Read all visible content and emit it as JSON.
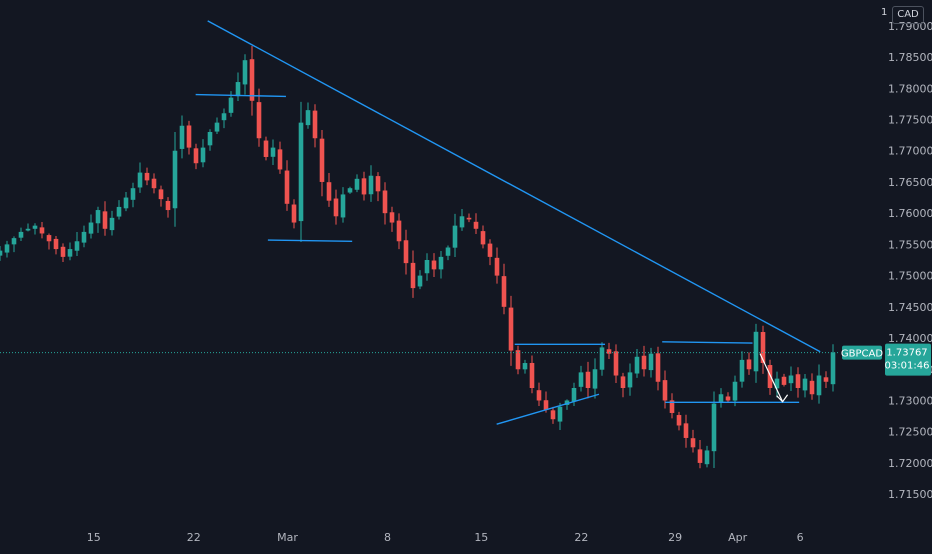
{
  "header": {
    "price_prefix": "1",
    "currency": "CAD"
  },
  "symbol": {
    "name": "GBPCAD",
    "last_price": "1.73767",
    "countdown": "03:01:46",
    "last_value": 1.73767
  },
  "colors": {
    "background": "#131722",
    "up": "#26a69a",
    "down": "#ef5350",
    "drawing": "#2196f3",
    "symbol_tag": "#26a69a",
    "arrow": "#ffffff"
  },
  "chart_data": {
    "type": "candlestick",
    "x_ticks": [
      "15",
      "22",
      "Mar",
      "8",
      "15",
      "22",
      "29",
      "Apr",
      "6"
    ],
    "y_ticks": [
      "1.79000",
      "1.78500",
      "1.78000",
      "1.77500",
      "1.77000",
      "1.76500",
      "1.76000",
      "1.75500",
      "1.75000",
      "1.74500",
      "1.74000",
      "1.73500",
      "1.73000",
      "1.72500",
      "1.72000",
      "1.71500"
    ],
    "ylim": [
      1.7115,
      1.7935
    ],
    "xlim": [
      0,
      128
    ],
    "tick_positions": [
      15,
      31,
      46,
      62,
      77,
      93,
      108,
      118,
      128
    ],
    "price_anchors": [
      [
        0,
        1.754
      ],
      [
        3,
        1.757
      ],
      [
        5,
        1.758
      ],
      [
        7,
        1.7555
      ],
      [
        9,
        1.753
      ],
      [
        11,
        1.7555
      ],
      [
        13,
        1.7585
      ],
      [
        14,
        1.7605
      ],
      [
        15,
        1.7575
      ],
      [
        17,
        1.761
      ],
      [
        19,
        1.764
      ],
      [
        20,
        1.7665
      ],
      [
        22,
        1.764
      ],
      [
        24,
        1.7605
      ],
      [
        25,
        1.77
      ],
      [
        26,
        1.774
      ],
      [
        27,
        1.7705
      ],
      [
        28,
        1.768
      ],
      [
        30,
        1.773
      ],
      [
        32,
        1.776
      ],
      [
        34,
        1.781
      ],
      [
        35,
        1.7845
      ],
      [
        36,
        1.778
      ],
      [
        37,
        1.772
      ],
      [
        38,
        1.769
      ],
      [
        39,
        1.7705
      ],
      [
        40,
        1.767
      ],
      [
        41,
        1.7615
      ],
      [
        42,
        1.7585
      ],
      [
        43,
        1.7745
      ],
      [
        44,
        1.7765
      ],
      [
        45,
        1.772
      ],
      [
        46,
        1.765
      ],
      [
        47,
        1.762
      ],
      [
        48,
        1.7595
      ],
      [
        49,
        1.763
      ],
      [
        50,
        1.764
      ],
      [
        51,
        1.7655
      ],
      [
        52,
        1.763
      ],
      [
        53,
        1.766
      ],
      [
        54,
        1.7635
      ],
      [
        55,
        1.76
      ],
      [
        56,
        1.7585
      ],
      [
        57,
        1.7555
      ],
      [
        58,
        1.752
      ],
      [
        59,
        1.748
      ],
      [
        60,
        1.75
      ],
      [
        61,
        1.7525
      ],
      [
        62,
        1.751
      ],
      [
        63,
        1.753
      ],
      [
        64,
        1.7545
      ],
      [
        65,
        1.758
      ],
      [
        66,
        1.7595
      ],
      [
        67,
        1.759
      ],
      [
        68,
        1.7575
      ],
      [
        69,
        1.755
      ],
      [
        70,
        1.753
      ],
      [
        71,
        1.75
      ],
      [
        72,
        1.745
      ],
      [
        73,
        1.738
      ],
      [
        74,
        1.735
      ],
      [
        75,
        1.736
      ],
      [
        76,
        1.732
      ],
      [
        77,
        1.73
      ],
      [
        78,
        1.7285
      ],
      [
        79,
        1.727
      ],
      [
        80,
        1.729
      ],
      [
        81,
        1.73
      ],
      [
        82,
        1.732
      ],
      [
        83,
        1.7345
      ],
      [
        84,
        1.732
      ],
      [
        85,
        1.735
      ],
      [
        86,
        1.7385
      ],
      [
        87,
        1.7375
      ],
      [
        88,
        1.734
      ],
      [
        89,
        1.732
      ],
      [
        90,
        1.7345
      ],
      [
        91,
        1.737
      ],
      [
        92,
        1.735
      ],
      [
        93,
        1.7375
      ],
      [
        94,
        1.733
      ],
      [
        95,
        1.73
      ],
      [
        96,
        1.728
      ],
      [
        97,
        1.726
      ],
      [
        98,
        1.724
      ],
      [
        99,
        1.7225
      ],
      [
        100,
        1.72
      ],
      [
        101,
        1.722
      ],
      [
        102,
        1.7295
      ],
      [
        103,
        1.731
      ],
      [
        104,
        1.73
      ],
      [
        105,
        1.733
      ],
      [
        106,
        1.7365
      ],
      [
        107,
        1.735
      ],
      [
        108,
        1.741
      ],
      [
        109,
        1.736
      ],
      [
        110,
        1.732
      ],
      [
        111,
        1.7335
      ],
      [
        112,
        1.7325
      ],
      [
        113,
        1.734
      ],
      [
        114,
        1.732
      ],
      [
        115,
        1.7335
      ],
      [
        116,
        1.731
      ],
      [
        117,
        1.734
      ],
      [
        118,
        1.733
      ],
      [
        119,
        1.7377
      ]
    ],
    "annotations": {
      "trendline": [
        [
          13.8,
          1.7908
        ],
        [
          54.5,
          1.7378
        ]
      ],
      "lines": [
        [
          [
            13.0,
            1.779
          ],
          [
            19.0,
            1.7787
          ]
        ],
        [
          [
            17.8,
            1.7557
          ],
          [
            23.4,
            1.7555
          ]
        ],
        [
          [
            34.2,
            1.739
          ],
          [
            40.2,
            1.739
          ]
        ],
        [
          [
            44.0,
            1.7394
          ],
          [
            50.0,
            1.7392
          ]
        ],
        [
          [
            33.0,
            1.7262
          ],
          [
            39.8,
            1.731
          ]
        ],
        [
          [
            44.2,
            1.7297
          ],
          [
            53.1,
            1.7297
          ]
        ]
      ],
      "arrow": [
        [
          50.5,
          1.7375
        ],
        [
          52.0,
          1.7298
        ]
      ]
    }
  }
}
